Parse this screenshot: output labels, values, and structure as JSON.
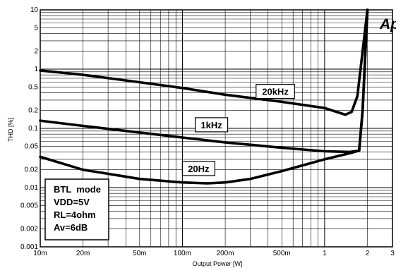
{
  "chart_data": {
    "type": "line",
    "xlabel": "Output Power [W]",
    "ylabel": "THD [%]",
    "x_scale": "log",
    "y_scale": "log",
    "xlim": [
      0.01,
      3
    ],
    "ylim": [
      0.001,
      10
    ],
    "grid": true,
    "x_ticks": [
      {
        "value": 0.01,
        "label": "10m"
      },
      {
        "value": 0.02,
        "label": "20m"
      },
      {
        "value": 0.05,
        "label": "50m"
      },
      {
        "value": 0.1,
        "label": "100m"
      },
      {
        "value": 0.2,
        "label": "200m"
      },
      {
        "value": 0.5,
        "label": "500m"
      },
      {
        "value": 1,
        "label": "1"
      },
      {
        "value": 2,
        "label": "2"
      },
      {
        "value": 3,
        "label": "3"
      }
    ],
    "y_ticks": [
      {
        "value": 10,
        "label": "10"
      },
      {
        "value": 5,
        "label": "5"
      },
      {
        "value": 2,
        "label": "2"
      },
      {
        "value": 1,
        "label": "1"
      },
      {
        "value": 0.5,
        "label": "0.5"
      },
      {
        "value": 0.2,
        "label": "0.2"
      },
      {
        "value": 0.1,
        "label": "0.1"
      },
      {
        "value": 0.05,
        "label": "0.05"
      },
      {
        "value": 0.02,
        "label": "0.02"
      },
      {
        "value": 0.01,
        "label": "0.01"
      },
      {
        "value": 0.005,
        "label": "0.005"
      },
      {
        "value": 0.002,
        "label": "0.002"
      },
      {
        "value": 0.001,
        "label": "0.001"
      }
    ],
    "series": [
      {
        "name": "20kHz",
        "x": [
          0.01,
          0.02,
          0.05,
          0.1,
          0.2,
          0.5,
          1.0,
          1.4,
          1.55,
          1.7,
          1.85,
          2.0
        ],
        "y": [
          0.95,
          0.8,
          0.6,
          0.48,
          0.37,
          0.28,
          0.22,
          0.17,
          0.19,
          0.35,
          2.0,
          10.0
        ],
        "label_at": [
          0.45,
          0.42
        ]
      },
      {
        "name": "1kHz",
        "x": [
          0.01,
          0.02,
          0.05,
          0.1,
          0.2,
          0.5,
          1.0,
          1.5,
          1.75,
          1.85,
          2.0
        ],
        "y": [
          0.135,
          0.11,
          0.085,
          0.07,
          0.058,
          0.047,
          0.041,
          0.04,
          0.042,
          0.2,
          10.0
        ],
        "label_at": [
          0.16,
          0.115
        ]
      },
      {
        "name": "20Hz",
        "x": [
          0.01,
          0.02,
          0.05,
          0.1,
          0.15,
          0.2,
          0.3,
          0.5,
          1.0,
          1.5,
          1.75,
          1.85,
          2.0
        ],
        "y": [
          0.033,
          0.02,
          0.014,
          0.0122,
          0.0118,
          0.0122,
          0.014,
          0.019,
          0.03,
          0.038,
          0.042,
          0.2,
          10.0
        ],
        "label_at": [
          0.13,
          0.021
        ]
      }
    ],
    "conditions": [
      "BTL  mode",
      "VDD=5V",
      "RL=4ohm",
      "Av=6dB"
    ],
    "logo": "Ap"
  }
}
